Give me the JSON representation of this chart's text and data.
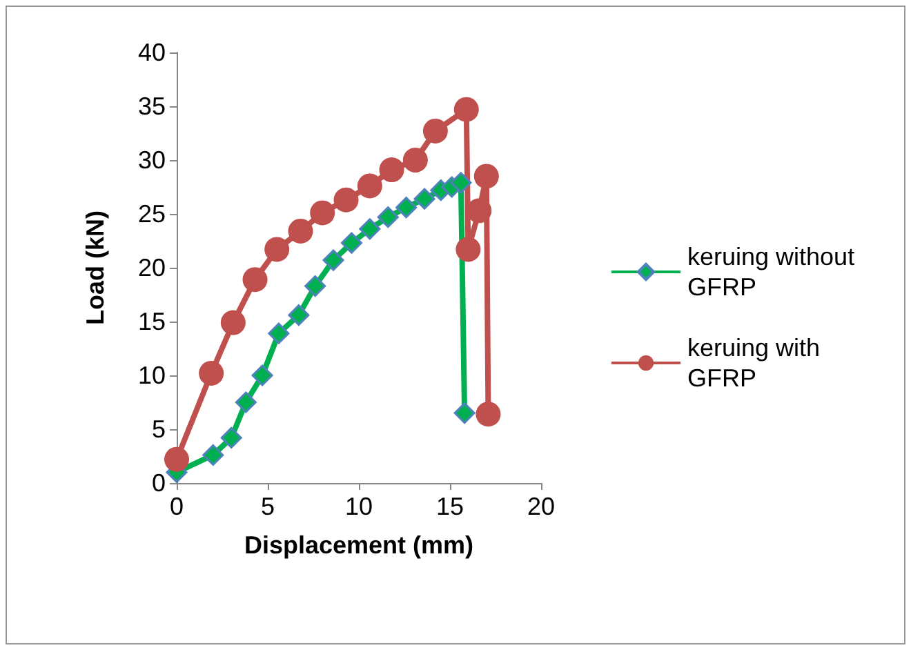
{
  "chart_data": {
    "type": "line",
    "xlabel": "Displacement (mm)",
    "ylabel": "Load (kN)",
    "xlim": [
      0,
      20
    ],
    "xticks": [
      0,
      5,
      10,
      15,
      20
    ],
    "ylim": [
      0,
      40
    ],
    "yticks": [
      0,
      5,
      10,
      15,
      20,
      25,
      30,
      35,
      40
    ],
    "grid": false,
    "legend": "right",
    "series": [
      {
        "name": "keruing without GFRP",
        "color": "#00b050",
        "marker": "diamond",
        "x": [
          0,
          2.0,
          3.0,
          3.8,
          4.7,
          5.6,
          6.7,
          7.6,
          8.6,
          9.6,
          10.6,
          11.6,
          12.6,
          13.6,
          14.5,
          15.1,
          15.6,
          15.8
        ],
        "values": [
          1,
          2.6,
          4.2,
          7.5,
          10.0,
          13.9,
          15.6,
          18.3,
          20.7,
          22.3,
          23.6,
          24.7,
          25.6,
          26.4,
          27.2,
          27.5,
          27.9,
          6.5
        ]
      },
      {
        "name": "keruing with GFRP",
        "color": "#c0504d",
        "marker": "circle",
        "x": [
          0,
          1.9,
          3.1,
          4.3,
          5.5,
          6.8,
          8.0,
          9.3,
          10.6,
          11.8,
          13.1,
          14.2,
          15.9,
          16.0,
          16.6,
          17.0,
          17.1
        ],
        "values": [
          2.2,
          10.2,
          14.9,
          18.9,
          21.7,
          23.4,
          25.1,
          26.3,
          27.6,
          29.1,
          30.0,
          32.7,
          34.7,
          21.7,
          25.3,
          28.5,
          6.4
        ]
      }
    ]
  }
}
